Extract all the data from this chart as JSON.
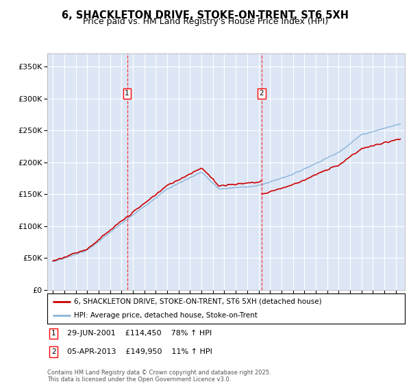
{
  "title_line1": "6, SHACKLETON DRIVE, STOKE-ON-TRENT, ST6 5XH",
  "title_line2": "Price paid vs. HM Land Registry's House Price Index (HPI)",
  "background_color": "#ffffff",
  "plot_bg_color": "#dce6f5",
  "grid_color": "#ffffff",
  "red_line_color": "#cc0000",
  "blue_line_color": "#8ab4d8",
  "legend_label_red": "6, SHACKLETON DRIVE, STOKE-ON-TRENT, ST6 5XH (detached house)",
  "legend_label_blue": "HPI: Average price, detached house, Stoke-on-Trent",
  "marker1_date_x": 2001.49,
  "marker2_date_x": 2013.27,
  "marker1_price": 114450,
  "marker2_price": 149950,
  "marker1_text": "29-JUN-2001    £114,450    78% ↑ HPI",
  "marker2_text": "05-APR-2013    £149,950    11% ↑ HPI",
  "ylim": [
    0,
    370000
  ],
  "yticks": [
    0,
    50000,
    100000,
    150000,
    200000,
    250000,
    300000,
    350000
  ],
  "ytick_labels": [
    "£0",
    "£50K",
    "£100K",
    "£150K",
    "£200K",
    "£250K",
    "£300K",
    "£350K"
  ],
  "xlim_start": 1994.5,
  "xlim_end": 2025.8,
  "footer_text": "Contains HM Land Registry data © Crown copyright and database right 2025.\nThis data is licensed under the Open Government Licence v3.0."
}
